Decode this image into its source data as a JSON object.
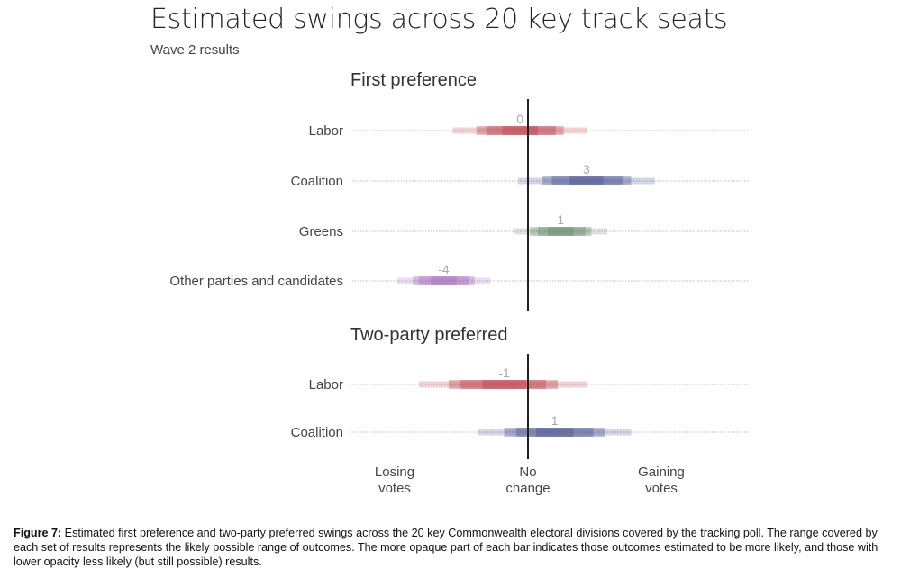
{
  "chart_data": {
    "type": "interval",
    "title": "Estimated swings across 20 key track seats",
    "subtitle": "Wave 2 results",
    "xlim": [
      -9,
      11.5
    ],
    "zero_line": 0,
    "axis_labels": {
      "left": [
        "Losing",
        "votes"
      ],
      "center": [
        "No",
        "change"
      ],
      "right": [
        "Gaining",
        "votes"
      ]
    },
    "panels": [
      {
        "title": "First preference",
        "rows": [
          {
            "label": "Labor",
            "value": "0",
            "color": "#b5303d",
            "bands": [
              [
                -3.8,
                3.0
              ],
              [
                -2.6,
                1.8
              ],
              [
                -2.1,
                1.4
              ],
              [
                -1.3,
                0.5
              ]
            ]
          },
          {
            "label": "Coalition",
            "value": "3",
            "color": "#3b4687",
            "bands": [
              [
                -0.5,
                6.4
              ],
              [
                0.7,
                5.2
              ],
              [
                1.2,
                4.8
              ],
              [
                2.1,
                3.8
              ]
            ]
          },
          {
            "label": "Greens",
            "value": "1",
            "color": "#5a8060",
            "bands": [
              [
                -0.7,
                4.0
              ],
              [
                0.1,
                3.2
              ],
              [
                0.5,
                2.9
              ],
              [
                1.0,
                2.3
              ]
            ]
          },
          {
            "label": "Other parties and candidates",
            "value": "-4",
            "color": "#a065b5",
            "bands": [
              [
                -6.6,
                -1.9
              ],
              [
                -5.8,
                -2.7
              ],
              [
                -5.5,
                -3.0
              ],
              [
                -4.9,
                -3.6
              ]
            ]
          }
        ]
      },
      {
        "title": "Two-party preferred",
        "rows": [
          {
            "label": "Labor",
            "value": "-1",
            "color": "#b5303d",
            "bands": [
              [
                -5.5,
                3.0
              ],
              [
                -4.0,
                1.5
              ],
              [
                -3.4,
                0.9
              ],
              [
                -2.3,
                -0.1
              ]
            ]
          },
          {
            "label": "Coalition",
            "value": "1",
            "color": "#3b4687",
            "bands": [
              [
                -2.5,
                5.2
              ],
              [
                -1.2,
                3.9
              ],
              [
                -0.6,
                3.3
              ],
              [
                0.4,
                2.3
              ]
            ]
          }
        ]
      }
    ],
    "band_opacity": [
      0.22,
      0.5,
      0.75,
      1
    ]
  },
  "caption": {
    "label": "Figure 7:",
    "text": " Estimated first preference and two-party preferred swings across the 20 key Commonwealth electoral divisions covered by the tracking poll.  The range covered by each set of results represents the likely possible range of outcomes. The more opaque part of each bar indicates those outcomes estimated to be more likely, and those with lower opacity less likely (but still possible) results."
  }
}
